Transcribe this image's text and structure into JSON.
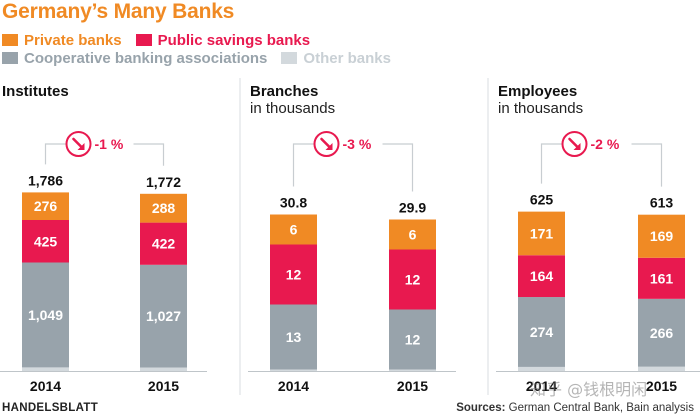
{
  "header": {
    "title": "Germany’s Many Banks",
    "source_label": "Sources:",
    "source_text": "German Central Bank, Bain analysis",
    "publisher": "HANDELSBLATT",
    "watermark": "知乎 @钱根明闲"
  },
  "colors": {
    "private": "#f08a24",
    "public": "#e8194f",
    "cooperative": "#98a3ab",
    "other": "#d3d9dd",
    "title": "#f08a24",
    "arrow_badge": "#e8194f"
  },
  "legend": [
    {
      "key": "private",
      "label": "Private banks",
      "color": "#f08a24"
    },
    {
      "key": "public",
      "label": "Public savings banks",
      "color": "#e8194f"
    },
    {
      "key": "cooperative",
      "label": "Cooperative banking associations",
      "color": "#98a3ab"
    },
    {
      "key": "other",
      "label": "Other banks",
      "color": "#d3d9dd"
    }
  ],
  "chart_data": [
    {
      "type": "bar",
      "stacked": true,
      "title": "Institutes",
      "subtitle": "",
      "categories": [
        "2014",
        "2015"
      ],
      "totals": [
        "1,786",
        "1,772"
      ],
      "change": "-1 %",
      "series": [
        {
          "name": "Other banks",
          "values": [
            36,
            35
          ],
          "labels": [
            "",
            ""
          ]
        },
        {
          "name": "Cooperative banking associations",
          "values": [
            1049,
            1027
          ],
          "labels": [
            "1,049",
            "1,027"
          ]
        },
        {
          "name": "Public savings banks",
          "values": [
            425,
            422
          ],
          "labels": [
            "425",
            "422"
          ]
        },
        {
          "name": "Private banks",
          "values": [
            276,
            288
          ],
          "labels": [
            "276",
            "288"
          ]
        }
      ]
    },
    {
      "type": "bar",
      "stacked": true,
      "title": "Branches",
      "subtitle": "in thousands",
      "categories": [
        "2014",
        "2015"
      ],
      "totals": [
        "30.8",
        "29.9"
      ],
      "change": "-3 %",
      "series": [
        {
          "name": "Other banks",
          "values": [
            0.3,
            0.3
          ],
          "labels": [
            "",
            ""
          ]
        },
        {
          "name": "Cooperative banking associations",
          "values": [
            13,
            12
          ],
          "labels": [
            "13",
            "12"
          ]
        },
        {
          "name": "Public savings banks",
          "values": [
            12,
            12
          ],
          "labels": [
            "12",
            "12"
          ]
        },
        {
          "name": "Private banks",
          "values": [
            6,
            6
          ],
          "labels": [
            "6",
            "6"
          ]
        }
      ]
    },
    {
      "type": "bar",
      "stacked": true,
      "title": "Employees",
      "subtitle": "in thousands",
      "categories": [
        "2014",
        "2015"
      ],
      "totals": [
        "625",
        "613"
      ],
      "change": "-2 %",
      "series": [
        {
          "name": "Other banks",
          "values": [
            16,
            17
          ],
          "labels": [
            "",
            ""
          ]
        },
        {
          "name": "Cooperative banking associations",
          "values": [
            274,
            266
          ],
          "labels": [
            "274",
            "266"
          ]
        },
        {
          "name": "Public savings banks",
          "values": [
            164,
            161
          ],
          "labels": [
            "164",
            "161"
          ]
        },
        {
          "name": "Private banks",
          "values": [
            171,
            169
          ],
          "labels": [
            "171",
            "169"
          ]
        }
      ]
    }
  ]
}
